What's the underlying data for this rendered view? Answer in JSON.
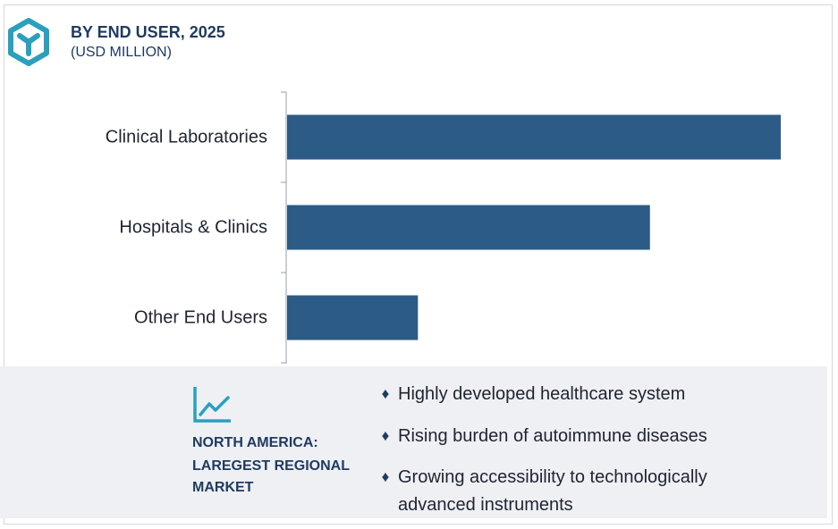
{
  "chart_data": {
    "type": "bar",
    "orientation": "horizontal",
    "title": "BY END USER, 2025",
    "subtitle": "(USD MILLION)",
    "categories": [
      "Clinical Laboratories",
      "Hospitals & Clinics",
      "Other End Users"
    ],
    "values": [
      100,
      73.5,
      26.5
    ],
    "xlim": [
      0,
      100
    ],
    "value_scale_note": "",
    "bar_color": "#2b5b86",
    "grid": false,
    "legend": "none"
  },
  "insight": {
    "region_lines": [
      "NORTH AMERICA:",
      "LAREGEST REGIONAL",
      "MARKET"
    ],
    "bullets": [
      {
        "lines": [
          "Highly developed healthcare system"
        ]
      },
      {
        "lines": [
          "Rising burden of autoimmune diseases"
        ]
      },
      {
        "lines": [
          "Growing accessibility to technologically",
          "advanced instruments"
        ]
      }
    ],
    "bullet_glyph": "♦",
    "icon": "trend-line-icon",
    "text_color": "#1f3b60",
    "panel_color": "#eef0f4"
  },
  "brand": {
    "logo_icon": "cube-logo-icon",
    "logo_color": "#2aa0bd"
  }
}
